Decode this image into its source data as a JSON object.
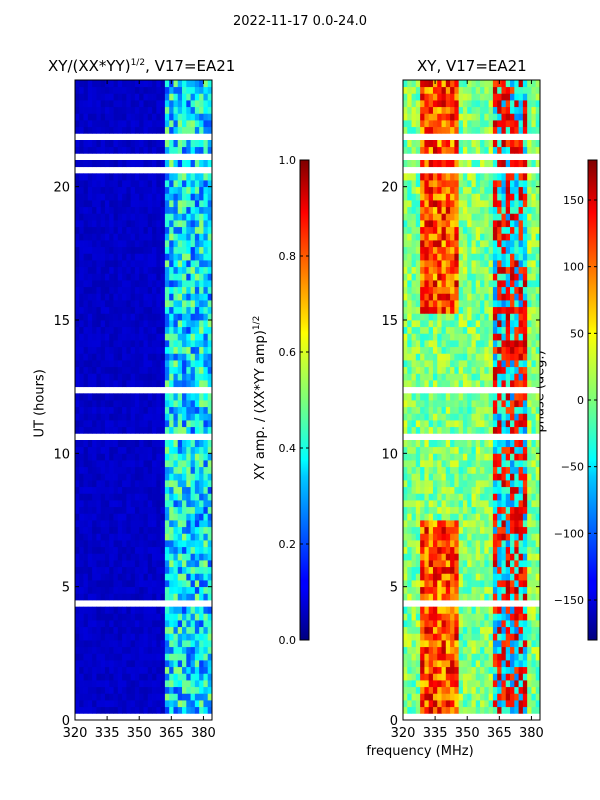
{
  "figure": {
    "suptitle": "2022-11-17 0.0-24.0",
    "xlabel": "frequency (MHz)"
  },
  "panels": {
    "left": {
      "title_main": "XY/(XX*YY)",
      "title_sup": "1/2",
      "title_rest": ", V17=EA21",
      "ylabel": "UT (hours)"
    },
    "right": {
      "title": "XY, V17=EA21"
    }
  },
  "colorbars": {
    "amp": {
      "label_main": "XY amp. / (XX*YY amp)",
      "label_sup": "1/2",
      "ticks": [
        "0.0",
        "0.2",
        "0.4",
        "0.6",
        "0.8",
        "1.0"
      ]
    },
    "phase": {
      "label": "phase (deg.)",
      "ticks": [
        "−150",
        "−100",
        "−50",
        "0",
        "50",
        "100",
        "150"
      ]
    }
  },
  "chart_data": [
    {
      "type": "heatmap",
      "title": "XY/(XX*YY)^1/2, V17=EA21",
      "xlabel": "",
      "ylabel": "UT (hours)",
      "x_ticks": [
        "320",
        "335",
        "350",
        "365",
        "380"
      ],
      "y_ticks": [
        "0",
        "5",
        "10",
        "15",
        "20"
      ],
      "xlim": [
        320,
        384
      ],
      "ylim": [
        0,
        24
      ],
      "colormap": "jet",
      "clim": [
        0.0,
        1.0
      ],
      "colorbar_label": "XY amp. / (XX*YY amp)^1/2",
      "colorbar_ticks": [
        0.0,
        0.2,
        0.4,
        0.6,
        0.8,
        1.0
      ],
      "bright_band_mhz": [
        362,
        384
      ],
      "background_level": 0.05
    },
    {
      "type": "heatmap",
      "title": "XY, V17=EA21",
      "xlabel": "frequency (MHz)",
      "ylabel": "",
      "x_ticks": [
        "320",
        "335",
        "350",
        "365",
        "380"
      ],
      "y_ticks": [
        "0",
        "5",
        "10",
        "15",
        "20"
      ],
      "xlim": [
        320,
        384
      ],
      "ylim": [
        0,
        24
      ],
      "colormap": "jet",
      "clim": [
        -180,
        180
      ],
      "colorbar_label": "phase (deg.)",
      "colorbar_ticks": [
        -150,
        -100,
        -50,
        0,
        50,
        100,
        150
      ],
      "hot_region_mhz": [
        328,
        345
      ],
      "hot_region2_mhz": [
        362,
        378
      ]
    }
  ],
  "colors": {
    "background": "#ffffff",
    "axis": "#000000",
    "flag": "#ffffff"
  }
}
